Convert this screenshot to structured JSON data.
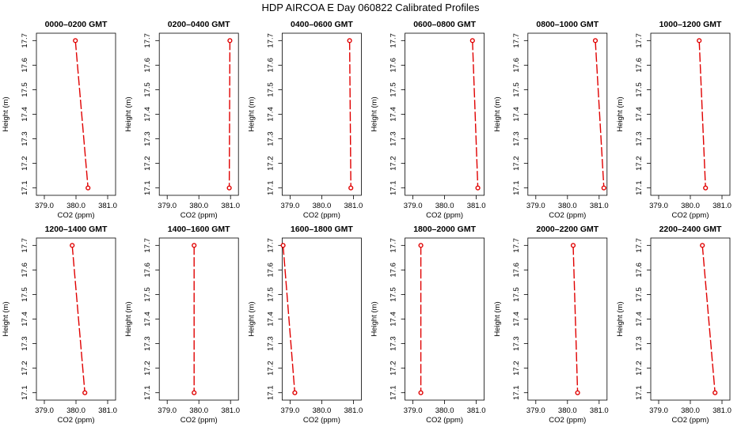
{
  "figure": {
    "title": "HDP  AIRCOA E  Day 060822  Calibrated Profiles"
  },
  "chart_data": [
    {
      "type": "line",
      "title": "0000–0200 GMT",
      "xlabel": "CO2 (ppm)",
      "ylabel": "Height (m)",
      "xlim": [
        378.75,
        381.25
      ],
      "ylim": [
        17.07,
        17.73
      ],
      "xticks": [
        "379.0",
        "380.0",
        "381.0"
      ],
      "yticks": [
        "17.1",
        "17.2",
        "17.3",
        "17.4",
        "17.5",
        "17.6",
        "17.7"
      ],
      "x": [
        379.98,
        380.38
      ],
      "y": [
        17.7,
        17.1
      ]
    },
    {
      "type": "line",
      "title": "0200–0400 GMT",
      "xlabel": "CO2 (ppm)",
      "ylabel": "Height (m)",
      "xlim": [
        378.75,
        381.25
      ],
      "ylim": [
        17.07,
        17.73
      ],
      "xticks": [
        "379.0",
        "380.0",
        "381.0"
      ],
      "yticks": [
        "17.1",
        "17.2",
        "17.3",
        "17.4",
        "17.5",
        "17.6",
        "17.7"
      ],
      "x": [
        380.98,
        380.96
      ],
      "y": [
        17.7,
        17.1
      ]
    },
    {
      "type": "line",
      "title": "0400–0600 GMT",
      "xlabel": "CO2 (ppm)",
      "ylabel": "Height (m)",
      "xlim": [
        378.75,
        381.25
      ],
      "ylim": [
        17.07,
        17.73
      ],
      "xticks": [
        "379.0",
        "380.0",
        "381.0"
      ],
      "yticks": [
        "17.1",
        "17.2",
        "17.3",
        "17.4",
        "17.5",
        "17.6",
        "17.7"
      ],
      "x": [
        380.88,
        380.92
      ],
      "y": [
        17.7,
        17.1
      ]
    },
    {
      "type": "line",
      "title": "0600–0800 GMT",
      "xlabel": "CO2 (ppm)",
      "ylabel": "Height (m)",
      "xlim": [
        378.75,
        381.25
      ],
      "ylim": [
        17.07,
        17.73
      ],
      "xticks": [
        "379.0",
        "380.0",
        "381.0"
      ],
      "yticks": [
        "17.1",
        "17.2",
        "17.3",
        "17.4",
        "17.5",
        "17.6",
        "17.7"
      ],
      "x": [
        380.88,
        381.05
      ],
      "y": [
        17.7,
        17.1
      ]
    },
    {
      "type": "line",
      "title": "0800–1000 GMT",
      "xlabel": "CO2 (ppm)",
      "ylabel": "Height (m)",
      "xlim": [
        378.75,
        381.25
      ],
      "ylim": [
        17.07,
        17.73
      ],
      "xticks": [
        "379.0",
        "380.0",
        "381.0"
      ],
      "yticks": [
        "17.1",
        "17.2",
        "17.3",
        "17.4",
        "17.5",
        "17.6",
        "17.7"
      ],
      "x": [
        380.88,
        381.15
      ],
      "y": [
        17.7,
        17.1
      ]
    },
    {
      "type": "line",
      "title": "1000–1200 GMT",
      "xlabel": "CO2 (ppm)",
      "ylabel": "Height (m)",
      "xlim": [
        378.75,
        381.25
      ],
      "ylim": [
        17.07,
        17.73
      ],
      "xticks": [
        "379.0",
        "380.0",
        "381.0"
      ],
      "yticks": [
        "17.1",
        "17.2",
        "17.3",
        "17.4",
        "17.5",
        "17.6",
        "17.7"
      ],
      "x": [
        380.28,
        380.48
      ],
      "y": [
        17.7,
        17.1
      ]
    },
    {
      "type": "line",
      "title": "1200–1400 GMT",
      "xlabel": "CO2 (ppm)",
      "ylabel": "Height (m)",
      "xlim": [
        378.75,
        381.25
      ],
      "ylim": [
        17.07,
        17.73
      ],
      "xticks": [
        "379.0",
        "380.0",
        "381.0"
      ],
      "yticks": [
        "17.1",
        "17.2",
        "17.3",
        "17.4",
        "17.5",
        "17.6",
        "17.7"
      ],
      "x": [
        379.88,
        380.28
      ],
      "y": [
        17.7,
        17.1
      ]
    },
    {
      "type": "line",
      "title": "1400–1600 GMT",
      "xlabel": "CO2 (ppm)",
      "ylabel": "Height (m)",
      "xlim": [
        378.75,
        381.25
      ],
      "ylim": [
        17.07,
        17.73
      ],
      "xticks": [
        "379.0",
        "380.0",
        "381.0"
      ],
      "yticks": [
        "17.1",
        "17.2",
        "17.3",
        "17.4",
        "17.5",
        "17.6",
        "17.7"
      ],
      "x": [
        379.85,
        379.85
      ],
      "y": [
        17.7,
        17.1
      ]
    },
    {
      "type": "line",
      "title": "1600–1800 GMT",
      "xlabel": "CO2 (ppm)",
      "ylabel": "Height (m)",
      "xlim": [
        378.75,
        381.25
      ],
      "ylim": [
        17.07,
        17.73
      ],
      "xticks": [
        "379.0",
        "380.0",
        "381.0"
      ],
      "yticks": [
        "17.1",
        "17.2",
        "17.3",
        "17.4",
        "17.5",
        "17.6",
        "17.7"
      ],
      "x": [
        378.78,
        379.15
      ],
      "y": [
        17.7,
        17.1
      ]
    },
    {
      "type": "line",
      "title": "1800–2000 GMT",
      "xlabel": "CO2 (ppm)",
      "ylabel": "Height (m)",
      "xlim": [
        378.75,
        381.25
      ],
      "ylim": [
        17.07,
        17.73
      ],
      "xticks": [
        "379.0",
        "380.0",
        "381.0"
      ],
      "yticks": [
        "17.1",
        "17.2",
        "17.3",
        "17.4",
        "17.5",
        "17.6",
        "17.7"
      ],
      "x": [
        379.25,
        379.25
      ],
      "y": [
        17.7,
        17.1
      ]
    },
    {
      "type": "line",
      "title": "2000–2200 GMT",
      "xlabel": "CO2 (ppm)",
      "ylabel": "Height (m)",
      "xlim": [
        378.75,
        381.25
      ],
      "ylim": [
        17.07,
        17.73
      ],
      "xticks": [
        "379.0",
        "380.0",
        "381.0"
      ],
      "yticks": [
        "17.1",
        "17.2",
        "17.3",
        "17.4",
        "17.5",
        "17.6",
        "17.7"
      ],
      "x": [
        380.18,
        380.32
      ],
      "y": [
        17.7,
        17.1
      ]
    },
    {
      "type": "line",
      "title": "2200–2400 GMT",
      "xlabel": "CO2 (ppm)",
      "ylabel": "Height (m)",
      "xlim": [
        378.75,
        381.25
      ],
      "ylim": [
        17.07,
        17.73
      ],
      "xticks": [
        "379.0",
        "380.0",
        "381.0"
      ],
      "yticks": [
        "17.1",
        "17.2",
        "17.3",
        "17.4",
        "17.5",
        "17.6",
        "17.7"
      ],
      "x": [
        380.38,
        380.78
      ],
      "y": [
        17.7,
        17.1
      ]
    }
  ]
}
